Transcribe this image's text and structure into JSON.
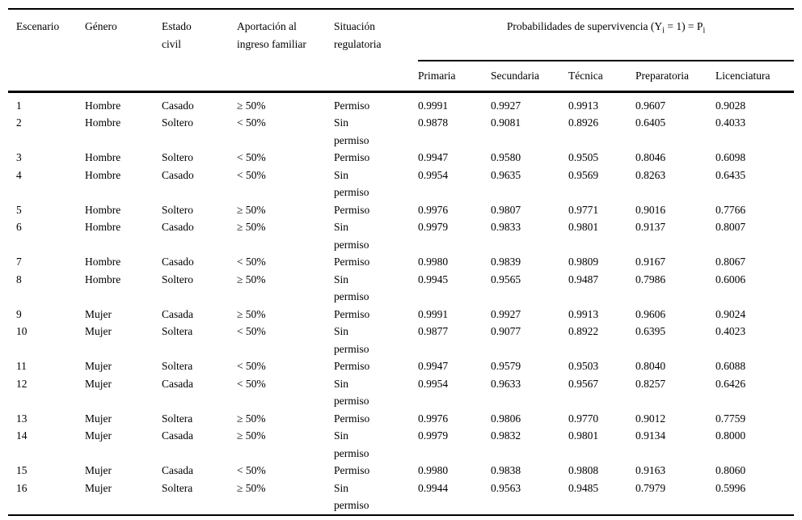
{
  "page": {
    "background": "#ffffff",
    "text_color": "#000000"
  },
  "table": {
    "column_headers": [
      "Escenario",
      "Género",
      "Estado civil",
      "Aportación al ingreso familiar",
      "Situación regulatoria"
    ],
    "span_header": {
      "text_before_sub1": "Probabilidades de supervivencia (Y",
      "sub1": "i",
      "text_between": " = 1) = P",
      "sub2": "i"
    },
    "prob_headers": [
      "Primaria",
      "Secundaria",
      "Técnica",
      "Preparatoria",
      "Licenciatura"
    ],
    "rows": [
      {
        "escenario": "1",
        "genero": "Hombre",
        "estado_civil": "Casado",
        "aportacion": "≥ 50%",
        "situacion": "Permiso",
        "probs": [
          "0.9991",
          "0.9927",
          "0.9913",
          "0.9607",
          "0.9028"
        ]
      },
      {
        "escenario": "2",
        "genero": "Hombre",
        "estado_civil": "Soltero",
        "aportacion": "< 50%",
        "situacion": "Sin permiso",
        "probs": [
          "0.9878",
          "0.9081",
          "0.8926",
          "0.6405",
          "0.4033"
        ]
      },
      {
        "escenario": "3",
        "genero": "Hombre",
        "estado_civil": "Soltero",
        "aportacion": "< 50%",
        "situacion": "Permiso",
        "probs": [
          "0.9947",
          "0.9580",
          "0.9505",
          "0.8046",
          "0.6098"
        ]
      },
      {
        "escenario": "4",
        "genero": "Hombre",
        "estado_civil": "Casado",
        "aportacion": "< 50%",
        "situacion": "Sin permiso",
        "probs": [
          "0.9954",
          "0.9635",
          "0.9569",
          "0.8263",
          "0.6435"
        ]
      },
      {
        "escenario": "5",
        "genero": "Hombre",
        "estado_civil": "Soltero",
        "aportacion": "≥ 50%",
        "situacion": "Permiso",
        "probs": [
          "0.9976",
          "0.9807",
          "0.9771",
          "0.9016",
          "0.7766"
        ]
      },
      {
        "escenario": "6",
        "genero": "Hombre",
        "estado_civil": "Casado",
        "aportacion": "≥ 50%",
        "situacion": "Sin permiso",
        "probs": [
          "0.9979",
          "0.9833",
          "0.9801",
          "0.9137",
          "0.8007"
        ]
      },
      {
        "escenario": "7",
        "genero": "Hombre",
        "estado_civil": "Casado",
        "aportacion": "< 50%",
        "situacion": "Permiso",
        "probs": [
          "0.9980",
          "0.9839",
          "0.9809",
          "0.9167",
          "0.8067"
        ]
      },
      {
        "escenario": "8",
        "genero": "Hombre",
        "estado_civil": "Soltero",
        "aportacion": "≥ 50%",
        "situacion": "Sin permiso",
        "probs": [
          "0.9945",
          "0.9565",
          "0.9487",
          "0.7986",
          "0.6006"
        ]
      },
      {
        "escenario": "9",
        "genero": "Mujer",
        "estado_civil": "Casada",
        "aportacion": "≥ 50%",
        "situacion": "Permiso",
        "probs": [
          "0.9991",
          "0.9927",
          "0.9913",
          "0.9606",
          "0.9024"
        ]
      },
      {
        "escenario": "10",
        "genero": "Mujer",
        "estado_civil": "Soltera",
        "aportacion": "< 50%",
        "situacion": "Sin permiso",
        "probs": [
          "0.9877",
          "0.9077",
          "0.8922",
          "0.6395",
          "0.4023"
        ]
      },
      {
        "escenario": "11",
        "genero": "Mujer",
        "estado_civil": "Soltera",
        "aportacion": "< 50%",
        "situacion": "Permiso",
        "probs": [
          "0.9947",
          "0.9579",
          "0.9503",
          "0.8040",
          "0.6088"
        ]
      },
      {
        "escenario": "12",
        "genero": "Mujer",
        "estado_civil": "Casada",
        "aportacion": "< 50%",
        "situacion": "Sin permiso",
        "probs": [
          "0.9954",
          "0.9633",
          "0.9567",
          "0.8257",
          "0.6426"
        ]
      },
      {
        "escenario": "13",
        "genero": "Mujer",
        "estado_civil": "Soltera",
        "aportacion": "≥ 50%",
        "situacion": "Permiso",
        "probs": [
          "0.9976",
          "0.9806",
          "0.9770",
          "0.9012",
          "0.7759"
        ]
      },
      {
        "escenario": "14",
        "genero": "Mujer",
        "estado_civil": "Casada",
        "aportacion": "≥ 50%",
        "situacion": "Sin permiso",
        "probs": [
          "0.9979",
          "0.9832",
          "0.9801",
          "0.9134",
          "0.8000"
        ]
      },
      {
        "escenario": "15",
        "genero": "Mujer",
        "estado_civil": "Casada",
        "aportacion": "< 50%",
        "situacion": "Permiso",
        "probs": [
          "0.9980",
          "0.9838",
          "0.9808",
          "0.9163",
          "0.8060"
        ]
      },
      {
        "escenario": "16",
        "genero": "Mujer",
        "estado_civil": "Soltera",
        "aportacion": "≥ 50%",
        "situacion": "Sin permiso",
        "probs": [
          "0.9944",
          "0.9563",
          "0.9485",
          "0.7979",
          "0.5996"
        ]
      }
    ]
  }
}
